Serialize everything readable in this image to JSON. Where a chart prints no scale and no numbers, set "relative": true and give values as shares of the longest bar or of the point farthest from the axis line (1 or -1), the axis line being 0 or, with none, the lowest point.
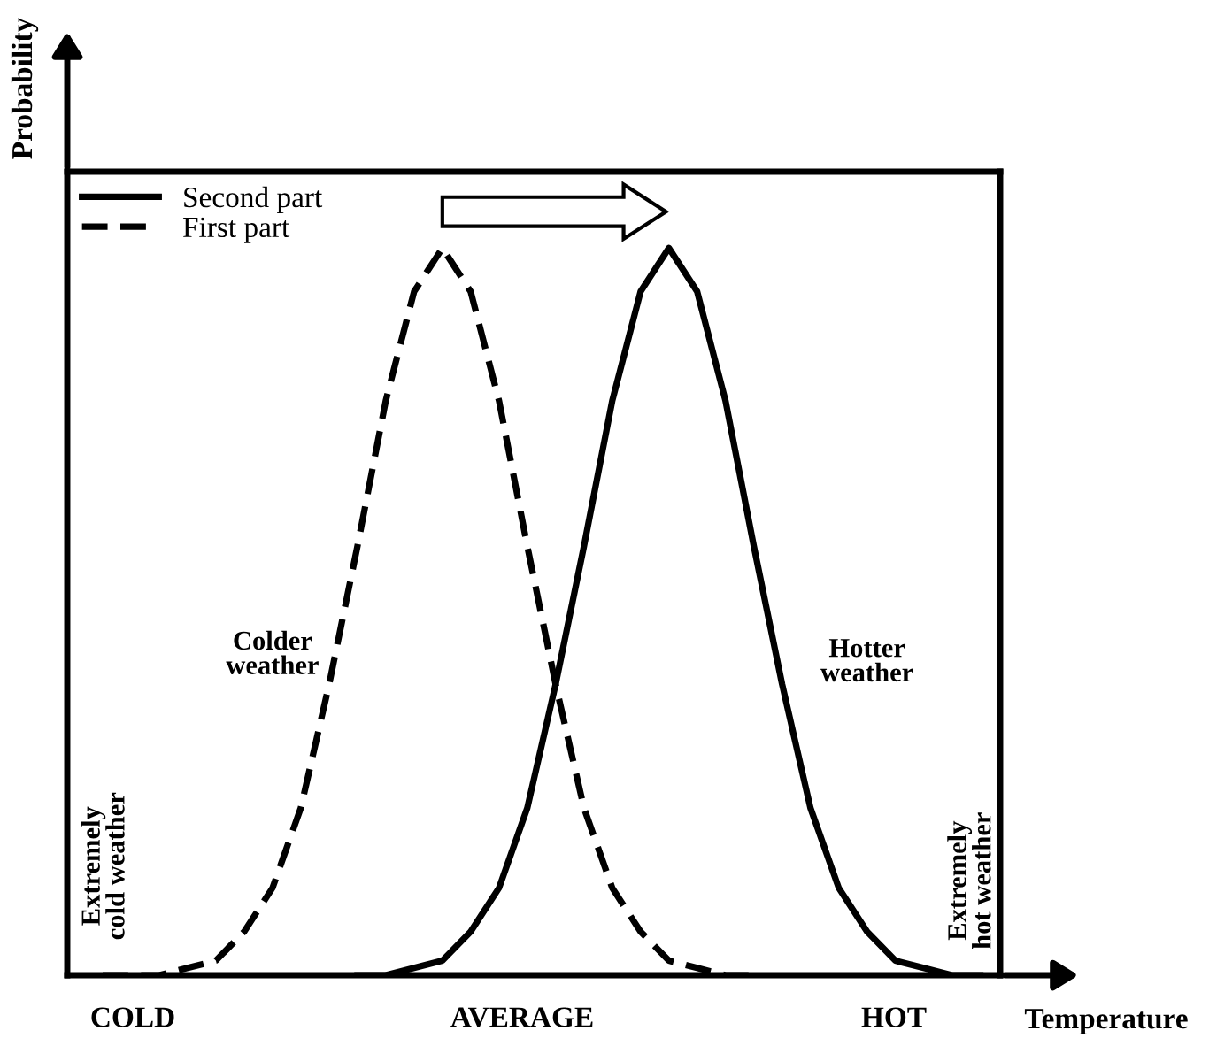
{
  "chart_data": {
    "type": "line",
    "relative": true,
    "xlabel": "Temperature",
    "ylabel": "Probability",
    "legend": "top left",
    "marker": "none",
    "categories": [
      null,
      null,
      null,
      null,
      null,
      null,
      null,
      null,
      null,
      null,
      null,
      null,
      null,
      null,
      null,
      null,
      null,
      null,
      null,
      null,
      null,
      null,
      null,
      null,
      null,
      null,
      null,
      null,
      null,
      null,
      null,
      null,
      null
    ],
    "series": [
      {
        "name": "Second part",
        "color": "#000000",
        "line_style": "solid",
        "values": [
          null,
          null,
          null,
          null,
          null,
          null,
          null,
          null,
          null,
          null,
          0.0,
          0.0,
          0.01,
          0.02,
          0.06,
          0.12,
          0.23,
          0.4,
          0.59,
          0.79,
          0.94,
          1,
          0.94,
          0.79,
          0.59,
          0.4,
          0.23,
          0.12,
          0.06,
          0.02,
          0.01,
          0.0,
          0.0
        ]
      },
      {
        "name": "First part",
        "color": "#000000",
        "line_style": "dashed",
        "values": [
          null,
          0.0,
          0.0,
          0.0,
          0.01,
          0.02,
          0.06,
          0.12,
          0.23,
          0.4,
          0.59,
          0.79,
          0.94,
          1,
          0.94,
          0.79,
          0.59,
          0.4,
          0.23,
          0.12,
          0.06,
          0.02,
          0.01,
          0.0,
          0.0,
          null,
          null,
          null,
          null,
          null,
          null,
          null,
          null
        ]
      }
    ],
    "annotations": [
      "Colder weather",
      "Hotter weather",
      "Extremely cold weather",
      "Extremely hot weather",
      "COLD",
      "AVERAGE",
      "HOT"
    ]
  }
}
